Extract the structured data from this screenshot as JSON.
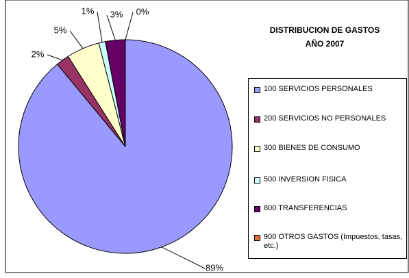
{
  "chart_data": {
    "type": "pie",
    "title": [
      "DISTRIBUCION DE GASTOS",
      "AÑO 2007"
    ],
    "categories": [
      "100 SERVICIOS PERSONALES",
      "200 SERVICIOS NO PERSONALES",
      "300 BIENES DE CONSUMO",
      "500 INVERSION FISICA",
      "800 TRANSFERENCIAS",
      "900 OTROS GASTOS (Impuestos, tasas, etc.)"
    ],
    "values": [
      89,
      2,
      5,
      1,
      3,
      0
    ],
    "value_labels": [
      "89%",
      "2%",
      "5%",
      "1%",
      "3%",
      "0%"
    ],
    "colors": [
      "#9999ff",
      "#993366",
      "#ffffcc",
      "#ccffff",
      "#660066",
      "#e0703a"
    ],
    "legend": "right"
  }
}
